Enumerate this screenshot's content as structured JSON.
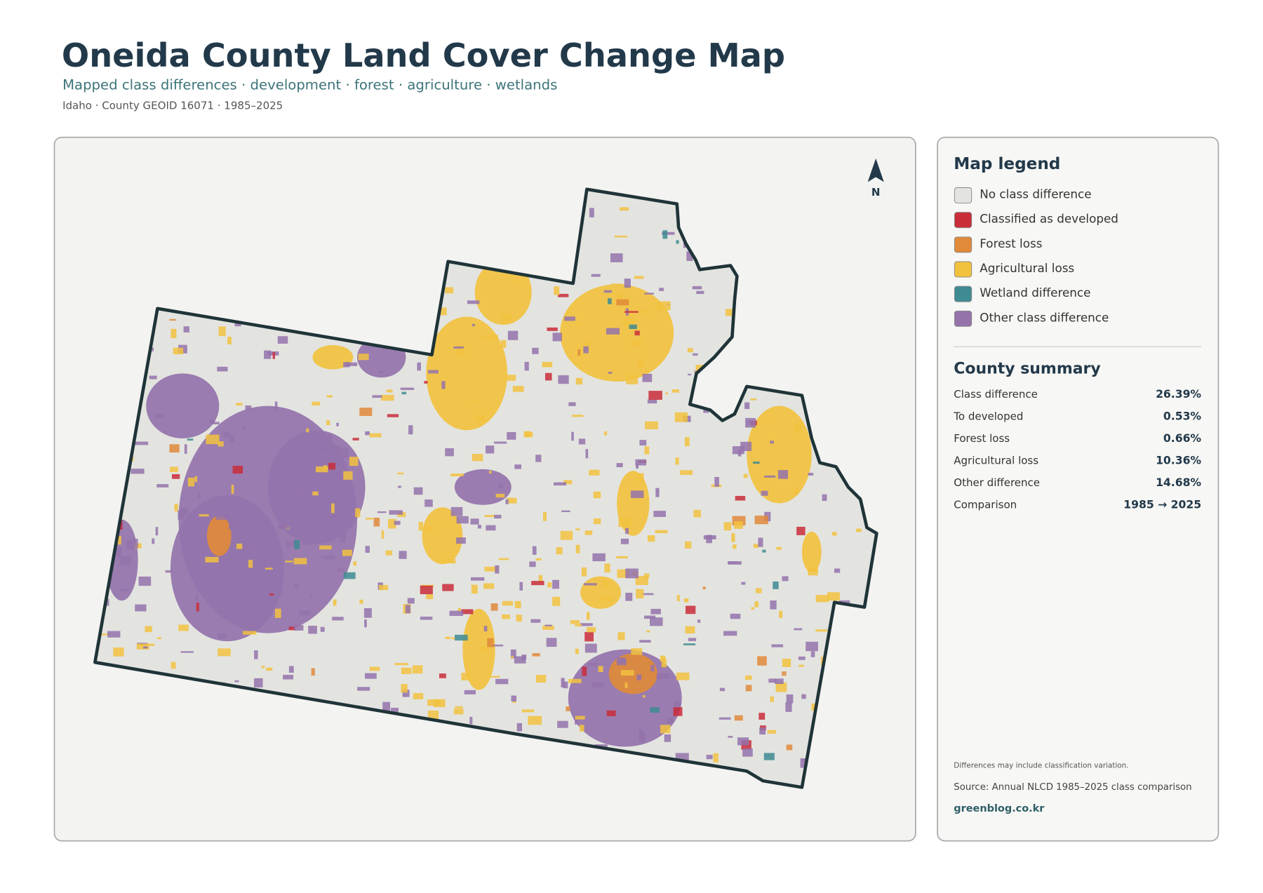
{
  "header": {
    "title": "Oneida County Land Cover Change Map",
    "subtitle": "Mapped class differences · development · forest · agriculture · wetlands",
    "meta": "Idaho · County GEOID 16071 · 1985–2025"
  },
  "map": {
    "north": "N"
  },
  "legend": {
    "title": "Map legend",
    "items": [
      {
        "label": "No class difference",
        "color": "#e3e4e0"
      },
      {
        "label": "Classified as developed",
        "color": "#c92d39"
      },
      {
        "label": "Forest loss",
        "color": "#e08a3a"
      },
      {
        "label": "Agricultural loss",
        "color": "#f2c23f"
      },
      {
        "label": "Wetland difference",
        "color": "#3e8b92"
      },
      {
        "label": "Other class difference",
        "color": "#9473ab"
      }
    ]
  },
  "summary": {
    "title": "County summary",
    "rows": [
      [
        "Class difference",
        "26.39%"
      ],
      [
        "To developed",
        "0.53%"
      ],
      [
        "Forest loss",
        "0.66%"
      ],
      [
        "Agricultural loss",
        "10.36%"
      ],
      [
        "Other difference",
        "14.68%"
      ],
      [
        "Comparison",
        "1985 → 2025"
      ]
    ]
  },
  "notes": {
    "disclaimer": "Differences may include classification variation.",
    "source": "Source: Annual NLCD 1985–2025 class comparison",
    "site": "greenblog.co.kr"
  }
}
